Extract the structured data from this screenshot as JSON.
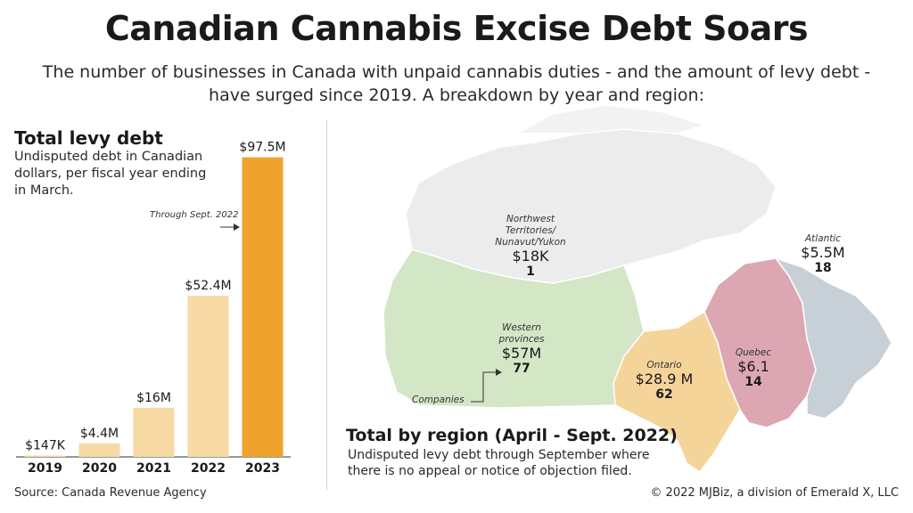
{
  "header": {
    "title": "Canadian Cannabis Excise Debt Soars",
    "subtitle": "The number of businesses in Canada with unpaid cannabis duties - and the amount of levy debt - have surged since 2019. A breakdown by year and region:"
  },
  "left_panel": {
    "title": "Total levy debt",
    "description": "Undisputed debt in Canadian dollars, per fiscal year ending in March.",
    "annotation": "Through Sept. 2022"
  },
  "chart_data": [
    {
      "type": "bar",
      "title": "Total levy debt",
      "categories": [
        "2019",
        "2020",
        "2021",
        "2022",
        "2023"
      ],
      "values": [
        0.147,
        4.4,
        16,
        52.4,
        97.5
      ],
      "unit": "millions CAD",
      "data_labels": [
        "$147K",
        "$4.4M",
        "$16M",
        "$52.4M",
        "$97.5M"
      ],
      "ylim": [
        0,
        100
      ],
      "colors": [
        "#f7d9a4",
        "#f7d9a4",
        "#f7d9a4",
        "#f7d9a4",
        "#f0a22e"
      ],
      "grid": false
    },
    {
      "type": "map",
      "title": "Total by region (April - Sept. 2022)",
      "regions": [
        {
          "name": "Northwest Territories/ Nunavut/Yukon",
          "amount": "$18K",
          "companies": "1",
          "color": "#ececec"
        },
        {
          "name": "Western provinces",
          "amount": "$57M",
          "companies": "77",
          "color": "#d3e6c6"
        },
        {
          "name": "Ontario",
          "amount": "$28.9 M",
          "companies": "62",
          "color": "#f5d49a"
        },
        {
          "name": "Quebec",
          "amount": "$6.1",
          "companies": "14",
          "color": "#dca7b2"
        },
        {
          "name": "Atlantic",
          "amount": "$5.5M",
          "companies": "18",
          "color": "#c6d0d6"
        }
      ]
    }
  ],
  "region_section": {
    "title": "Total by region (April - Sept. 2022)",
    "description": "Undisputed levy debt through September where there is no appeal or notice of objection filed.",
    "companies_label": "Companies"
  },
  "footer": {
    "source": "Source: Canada Revenue Agency",
    "copyright": "© 2022 MJBiz, a division of Emerald X, LLC"
  }
}
